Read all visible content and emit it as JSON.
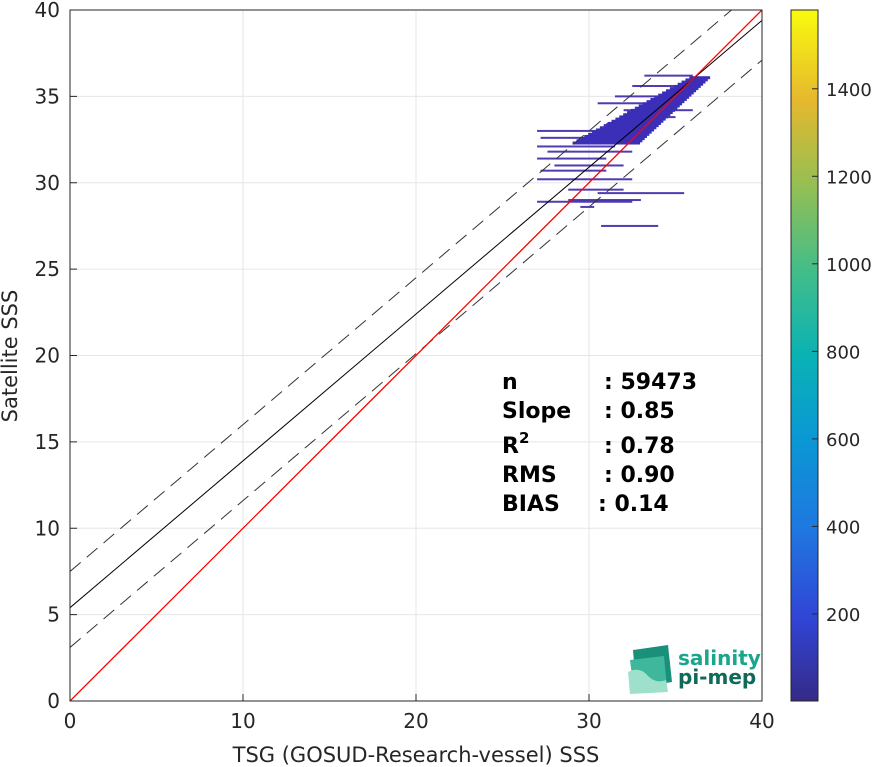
{
  "chart_data": {
    "type": "heatmap",
    "xlabel": "TSG (GOSUD-Research-vessel) SSS",
    "ylabel": "Satellite SSS",
    "xlim": [
      0,
      40
    ],
    "ylim": [
      0,
      40
    ],
    "xticks": [
      0,
      10,
      20,
      30,
      40
    ],
    "yticks": [
      0,
      5,
      10,
      15,
      20,
      25,
      30,
      35,
      40
    ],
    "grid": true,
    "colorbar": {
      "range": [
        1,
        1580
      ],
      "ticks": [
        200,
        400,
        600,
        800,
        1000,
        1200,
        1400
      ],
      "colormap": "parula"
    },
    "lines": {
      "identity": {
        "slope": 1,
        "intercept": 0,
        "color": "#ff0000"
      },
      "fit": {
        "slope": 0.85,
        "intercept": 5.4,
        "color": "#000000"
      },
      "upper_bound": {
        "slope": 0.85,
        "intercept": 7.5,
        "style": "dashed"
      },
      "lower_bound": {
        "slope": 0.85,
        "intercept": 3.1,
        "style": "dashed"
      }
    },
    "density_cells": [
      {
        "x0": 27.0,
        "x1": 31.0,
        "y": 33.0
      },
      {
        "x0": 27.2,
        "x1": 32.0,
        "y": 32.6
      },
      {
        "x0": 27.0,
        "x1": 31.5,
        "y": 32.1
      },
      {
        "x0": 27.6,
        "x1": 32.5,
        "y": 31.8
      },
      {
        "x0": 27.0,
        "x1": 31.0,
        "y": 31.4
      },
      {
        "x0": 28.0,
        "x1": 32.0,
        "y": 31.0
      },
      {
        "x0": 27.2,
        "x1": 31.0,
        "y": 30.7
      },
      {
        "x0": 27.0,
        "x1": 32.5,
        "y": 30.2
      },
      {
        "x0": 28.8,
        "x1": 32.0,
        "y": 29.6
      },
      {
        "x0": 28.8,
        "x1": 33.0,
        "y": 29.0
      },
      {
        "x0": 30.5,
        "x1": 35.5,
        "y": 29.4
      },
      {
        "x0": 27.0,
        "x1": 32.5,
        "y": 28.9
      },
      {
        "x0": 29.5,
        "x1": 30.3,
        "y": 28.6
      },
      {
        "x0": 30.7,
        "x1": 34.0,
        "y": 27.5
      },
      {
        "x0": 30.5,
        "x1": 33.8,
        "y": 34.6
      },
      {
        "x0": 31.5,
        "x1": 34.2,
        "y": 35.0
      },
      {
        "x0": 32.5,
        "x1": 35.0,
        "y": 35.6
      },
      {
        "x0": 33.2,
        "x1": 36.0,
        "y": 36.2
      },
      {
        "x0": 32.0,
        "x1": 35.0,
        "y": 33.8
      },
      {
        "x0": 31.0,
        "x1": 34.0,
        "y": 33.4
      },
      {
        "x0": 32.0,
        "x1": 36.0,
        "y": 34.2
      }
    ],
    "stats": [
      {
        "label": "n",
        "value": ": 59473"
      },
      {
        "label": "Slope",
        "value": ": 0.85"
      },
      {
        "label": "R",
        "sup": "2",
        "value": ": 0.78"
      },
      {
        "label": "RMS",
        "value": ": 0.90"
      },
      {
        "label": "BIAS",
        "value": ": 0.14"
      }
    ]
  },
  "logo": {
    "line1": "salinity",
    "line2": "pi-mep"
  },
  "colors": {
    "identity": "#ff0000",
    "fit": "#000000",
    "density": "#3e26a8",
    "logo_teal": "#1aa58c",
    "logo_dark": "#106a5a"
  }
}
